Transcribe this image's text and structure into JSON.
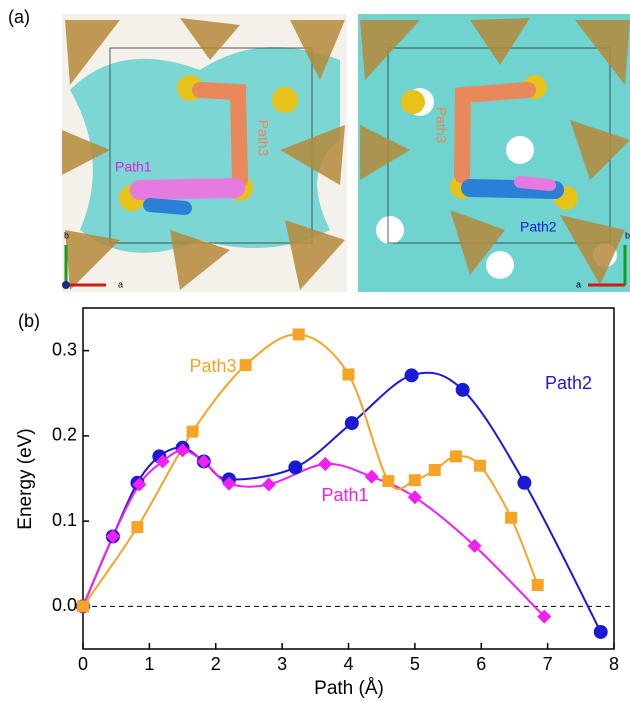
{
  "panel_a": {
    "label": "(a)",
    "paths": [
      "Path1",
      "Path2",
      "Path3"
    ],
    "axes_left": [
      "b",
      "a"
    ],
    "axes_right": [
      "b",
      "a"
    ]
  },
  "chart_data": {
    "type": "line",
    "panel_label": "(b)",
    "xlabel": "Path (Å)",
    "ylabel": "Energy (eV)",
    "xlim": [
      0,
      8
    ],
    "xticks": [
      0,
      1,
      2,
      3,
      4,
      5,
      6,
      7,
      8
    ],
    "ylim": [
      -0.05,
      0.35
    ],
    "yticks": [
      {
        "value": 0,
        "label": "0.0"
      },
      0.1,
      0.2,
      0.3
    ],
    "hline": 0,
    "series": [
      {
        "name": "Path2",
        "color": "#1a1ad6",
        "marker": "circle",
        "x": [
          0,
          0.45,
          0.82,
          1.15,
          1.5,
          1.82,
          2.2,
          3.2,
          4.05,
          4.95,
          5.72,
          6.65,
          7.8
        ],
        "values": [
          0,
          0.082,
          0.145,
          0.176,
          0.186,
          0.17,
          0.149,
          0.163,
          0.215,
          0.271,
          0.254,
          0.145,
          -0.03
        ]
      },
      {
        "name": "Path1",
        "color": "#f020f0",
        "marker": "diamond",
        "x": [
          0,
          0.45,
          0.85,
          1.2,
          1.5,
          1.82,
          2.2,
          2.8,
          3.65,
          4.35,
          5.0,
          5.9,
          6.95
        ],
        "values": [
          0,
          0.082,
          0.143,
          0.17,
          0.183,
          0.17,
          0.144,
          0.143,
          0.167,
          0.152,
          0.128,
          0.071,
          -0.012
        ]
      },
      {
        "name": "Path3",
        "color": "#f5a425",
        "marker": "square",
        "x": [
          0,
          0.82,
          1.65,
          2.45,
          3.25,
          4.0,
          4.6,
          5.0,
          5.3,
          5.62,
          5.98,
          6.45,
          6.85
        ],
        "values": [
          0,
          0.093,
          0.205,
          0.283,
          0.319,
          0.272,
          0.147,
          0.148,
          0.16,
          0.176,
          0.165,
          0.104,
          0.025
        ]
      }
    ]
  }
}
